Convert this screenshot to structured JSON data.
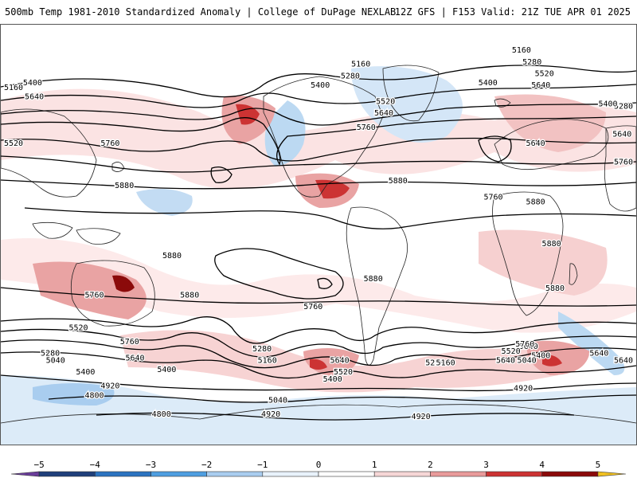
{
  "header": {
    "left_title": "500mb Temp 1981-2010 Standardized Anomaly | College of DuPage NEXLAB",
    "right_title": "12Z GFS | F153 Valid: 21Z TUE APR 01 2025"
  },
  "map": {
    "projection": "global-equirectangular",
    "field": "500mb temperature standardized anomaly",
    "contour_field": "500mb geopotential height (dam)",
    "contour_labels": [
      {
        "text": "5160",
        "lon": -155,
        "lat": 62
      },
      {
        "text": "5400",
        "lon": -142,
        "lat": 64
      },
      {
        "text": "5640",
        "lon": -141,
        "lat": 58
      },
      {
        "text": "5280",
        "lon": -162,
        "lat": 54
      },
      {
        "text": "5400",
        "lon": 184,
        "lat": 55
      },
      {
        "text": "5640",
        "lon": -168,
        "lat": 42
      },
      {
        "text": "5520",
        "lon": -153,
        "lat": 38
      },
      {
        "text": "5760",
        "lon": -164,
        "lat": 30
      },
      {
        "text": "5760",
        "lon": -98,
        "lat": 38
      },
      {
        "text": "5880",
        "lon": -90,
        "lat": 20
      },
      {
        "text": "5880",
        "lon": -63,
        "lat": -10
      },
      {
        "text": "5880",
        "lon": -53,
        "lat": -27
      },
      {
        "text": "5760",
        "lon": -107,
        "lat": -27
      },
      {
        "text": "5760",
        "lon": 17,
        "lat": -32
      },
      {
        "text": "5760",
        "lon": -87,
        "lat": -47
      },
      {
        "text": "5520",
        "lon": -116,
        "lat": -41
      },
      {
        "text": "5640",
        "lon": -84,
        "lat": -54
      },
      {
        "text": "5400",
        "lon": -66,
        "lat": -59
      },
      {
        "text": "5280",
        "lon": -12,
        "lat": -50
      },
      {
        "text": "5160",
        "lon": -9,
        "lat": -55
      },
      {
        "text": "5640",
        "lon": 32,
        "lat": -55
      },
      {
        "text": "5520",
        "lon": 34,
        "lat": -60
      },
      {
        "text": "5400",
        "lon": 28,
        "lat": -63
      },
      {
        "text": "5040",
        "lon": -3,
        "lat": -72
      },
      {
        "text": "4920",
        "lon": -7,
        "lat": -78
      },
      {
        "text": "4920",
        "lon": -98,
        "lat": -66
      },
      {
        "text": "4800",
        "lon": -107,
        "lat": -70
      },
      {
        "text": "4800",
        "lon": -69,
        "lat": -78
      },
      {
        "text": "5640",
        "lon": 179,
        "lat": -52
      },
      {
        "text": "5280",
        "lon": -132,
        "lat": -52
      },
      {
        "text": "5040",
        "lon": -129,
        "lat": -55
      },
      {
        "text": "5640",
        "lon": -163,
        "lat": -55
      },
      {
        "text": "5400",
        "lon": -112,
        "lat": -60
      },
      {
        "text": "5280",
        "lon": 86,
        "lat": -56
      },
      {
        "text": "5160",
        "lon": 92,
        "lat": -56
      },
      {
        "text": "5880",
        "lon": 51,
        "lat": -20
      },
      {
        "text": "5640",
        "lon": 139,
        "lat": -49
      },
      {
        "text": "5520",
        "lon": 129,
        "lat": -51
      },
      {
        "text": "5400",
        "lon": 146,
        "lat": -53
      },
      {
        "text": "5040",
        "lon": 138,
        "lat": -55
      },
      {
        "text": "4920",
        "lon": 136,
        "lat": -67
      },
      {
        "text": "4920",
        "lon": 78,
        "lat": -79
      },
      {
        "text": "5760",
        "lon": 137,
        "lat": -48
      },
      {
        "text": "5640",
        "lon": 126,
        "lat": -55
      },
      {
        "text": "5160",
        "lon": 135,
        "lat": 78
      },
      {
        "text": "5280",
        "lon": 141,
        "lat": 73
      },
      {
        "text": "5520",
        "lon": 148,
        "lat": 68
      },
      {
        "text": "5640",
        "lon": 146,
        "lat": 63
      },
      {
        "text": "5400",
        "lon": 116,
        "lat": 64
      },
      {
        "text": "5640",
        "lon": 143,
        "lat": 38
      },
      {
        "text": "5760",
        "lon": 119,
        "lat": 15
      },
      {
        "text": "5880",
        "lon": 143,
        "lat": 13
      },
      {
        "text": "5880",
        "lon": 152,
        "lat": -5
      },
      {
        "text": "5880",
        "lon": 154,
        "lat": -24
      },
      {
        "text": "5160",
        "lon": 44,
        "lat": 72
      },
      {
        "text": "5280",
        "lon": 38,
        "lat": 67
      },
      {
        "text": "5400",
        "lon": 21,
        "lat": 63
      },
      {
        "text": "5520",
        "lon": 58,
        "lat": 56
      },
      {
        "text": "5640",
        "lon": 57,
        "lat": 51
      },
      {
        "text": "5760",
        "lon": 47,
        "lat": 45
      },
      {
        "text": "5880",
        "lon": 65,
        "lat": 22
      }
    ]
  },
  "legend": {
    "title": "",
    "ticks": [
      {
        "label": "−5",
        "value": -5
      },
      {
        "label": "−4",
        "value": -4
      },
      {
        "label": "−3",
        "value": -3
      },
      {
        "label": "−2",
        "value": -2
      },
      {
        "label": "−1",
        "value": -1
      },
      {
        "label": "0",
        "value": 0
      },
      {
        "label": "1",
        "value": 1
      },
      {
        "label": "2",
        "value": 2
      },
      {
        "label": "3",
        "value": 3
      },
      {
        "label": "4",
        "value": 4
      },
      {
        "label": "5",
        "value": 5
      }
    ],
    "bins": [
      {
        "from": -5.5,
        "to": -5,
        "color": "#6a3d9a"
      },
      {
        "from": -5,
        "to": -4,
        "color": "#1f3f7a"
      },
      {
        "from": -4,
        "to": -3,
        "color": "#2b73c0"
      },
      {
        "from": -3,
        "to": -2,
        "color": "#4f9ee0"
      },
      {
        "from": -2,
        "to": -1,
        "color": "#a9cdef"
      },
      {
        "from": -1,
        "to": 0,
        "color": "#e8f2fb"
      },
      {
        "from": 0,
        "to": 1,
        "color": "#ffffff"
      },
      {
        "from": 1,
        "to": 2,
        "color": "#f6d6d6"
      },
      {
        "from": 2,
        "to": 3,
        "color": "#e89a9a"
      },
      {
        "from": 3,
        "to": 4,
        "color": "#cc3333"
      },
      {
        "from": 4,
        "to": 5,
        "color": "#8b0a0a"
      },
      {
        "from": 5,
        "to": 5.5,
        "color": "#f0c020"
      }
    ]
  }
}
